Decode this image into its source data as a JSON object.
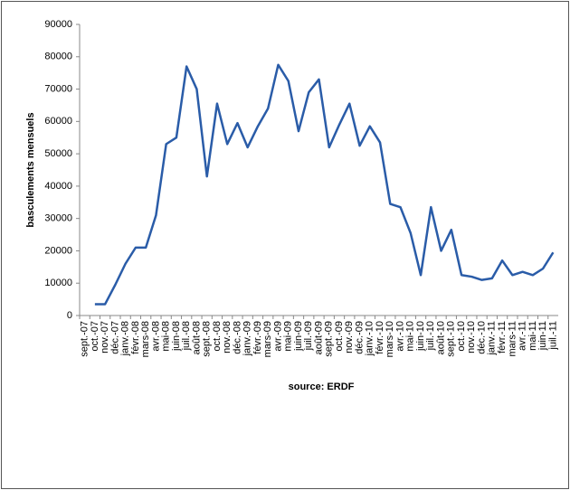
{
  "chart_data": {
    "type": "line",
    "ylabel": "basculements mensuels",
    "xlabel": "source: ERDF",
    "categories": [
      "sept.-07",
      "oct.-07",
      "nov.-07",
      "déc.-07",
      "janv.-08",
      "févr.-08",
      "mars-08",
      "avr.-08",
      "mai-08",
      "juin-08",
      "juil.-08",
      "août-08",
      "sept.-08",
      "oct.-08",
      "nov.-08",
      "déc.-08",
      "janv.-09",
      "févr.-09",
      "mars-09",
      "avr.-09",
      "mai-09",
      "juin-09",
      "juil.-09",
      "août-09",
      "sept.-09",
      "oct.-09",
      "nov.-09",
      "déc.-09",
      "janv.-10",
      "févr.-10",
      "mars-10",
      "avr.-10",
      "mai-10",
      "juin-10",
      "juil.-10",
      "août-10",
      "sept.-10",
      "oct.-10",
      "nov.-10",
      "déc.-10",
      "janv.-11",
      "févr.-11",
      "mars-11",
      "avr.-11",
      "mai-11",
      "juin-11",
      "juil.-11"
    ],
    "series": [
      {
        "name": "basculements mensuels",
        "color": "#2a5ca8",
        "values": [
          null,
          3500,
          3500,
          9500,
          16000,
          21000,
          21000,
          31000,
          53000,
          55000,
          77000,
          70000,
          43000,
          65500,
          53000,
          59500,
          52000,
          58500,
          64000,
          77500,
          72500,
          57000,
          69000,
          73000,
          52000,
          59000,
          65500,
          52500,
          58500,
          53500,
          34500,
          33500,
          25500,
          12500,
          33500,
          20000,
          26500,
          12500,
          12000,
          11000,
          11500,
          17000,
          12500,
          13500,
          12500,
          14500,
          19500
        ]
      }
    ],
    "ylim": [
      0,
      90000
    ],
    "yticks": [
      0,
      10000,
      20000,
      30000,
      40000,
      50000,
      60000,
      70000,
      80000,
      90000
    ],
    "grid": false
  }
}
